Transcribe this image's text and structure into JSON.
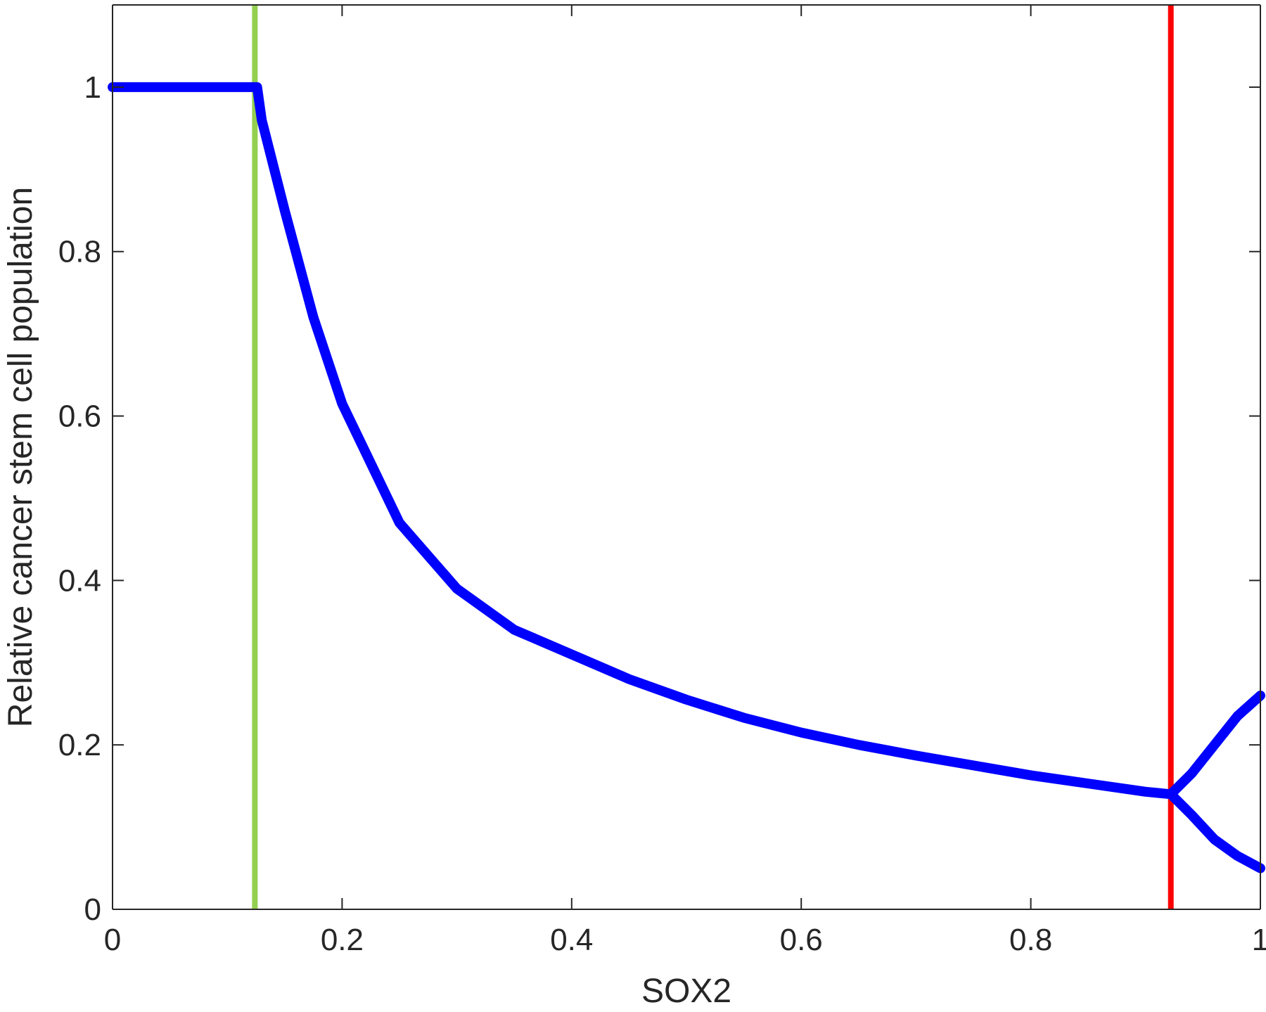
{
  "chart_data": {
    "type": "line",
    "title": "",
    "xlabel": "SOX2",
    "ylabel": "Relative cancer stem cell population",
    "xlim": [
      0,
      1
    ],
    "ylim": [
      0,
      1.1
    ],
    "xticks": [
      0,
      0.2,
      0.4,
      0.6,
      0.8,
      1
    ],
    "xtick_labels": [
      "0",
      "0.2",
      "0.4",
      "0.6",
      "0.8",
      "1"
    ],
    "yticks": [
      0,
      0.2,
      0.4,
      0.6,
      0.8,
      1
    ],
    "ytick_labels": [
      "0",
      "0.2",
      "0.4",
      "0.6",
      "0.8",
      "1"
    ],
    "grid": false,
    "legend": "none",
    "series": [
      {
        "color": "#0000ff",
        "x": [
          0,
          0.05,
          0.1,
          0.126,
          0.13,
          0.15,
          0.175,
          0.2,
          0.25,
          0.3,
          0.35,
          0.4,
          0.45,
          0.5,
          0.55,
          0.6,
          0.65,
          0.7,
          0.75,
          0.8,
          0.85,
          0.9,
          0.922
        ],
        "values": [
          1,
          1,
          1,
          1,
          0.96,
          0.85,
          0.72,
          0.615,
          0.47,
          0.39,
          0.34,
          0.31,
          0.28,
          0.255,
          0.233,
          0.215,
          0.2,
          0.187,
          0.175,
          0.163,
          0.153,
          0.143,
          0.14
        ]
      },
      {
        "color": "#0000ff",
        "x": [
          0.922,
          0.94,
          0.96,
          0.98,
          1.0
        ],
        "values": [
          0.14,
          0.165,
          0.2,
          0.235,
          0.26
        ]
      },
      {
        "color": "#0000ff",
        "x": [
          0.922,
          0.94,
          0.96,
          0.98,
          1.0
        ],
        "values": [
          0.14,
          0.115,
          0.085,
          0.065,
          0.05
        ]
      }
    ],
    "vertical_lines": [
      {
        "x": 0.124,
        "color": "#92d050"
      },
      {
        "x": 0.922,
        "color": "#ff0000"
      }
    ]
  }
}
